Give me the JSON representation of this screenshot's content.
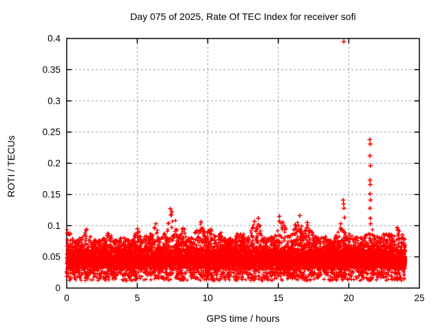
{
  "chart_data": {
    "type": "scatter",
    "title": "Day 075 of 2025, Rate Of TEC Index for receiver sofi",
    "xlabel": "GPS time / hours",
    "ylabel": "ROTI / TECUs",
    "xlim": [
      0,
      25
    ],
    "ylim": [
      0,
      0.4
    ],
    "xticks": [
      {
        "value": 0,
        "label": "0"
      },
      {
        "value": 5,
        "label": "5"
      },
      {
        "value": 10,
        "label": "10"
      },
      {
        "value": 15,
        "label": "15"
      },
      {
        "value": 20,
        "label": "20"
      },
      {
        "value": 25,
        "label": "25"
      }
    ],
    "yticks": [
      {
        "value": 0,
        "label": "0"
      },
      {
        "value": 0.05,
        "label": "0.05"
      },
      {
        "value": 0.1,
        "label": "0.1"
      },
      {
        "value": 0.15,
        "label": "0.15"
      },
      {
        "value": 0.2,
        "label": "0.2"
      },
      {
        "value": 0.25,
        "label": "0.25"
      },
      {
        "value": 0.3,
        "label": "0.3"
      },
      {
        "value": 0.35,
        "label": "0.35"
      },
      {
        "value": 0.4,
        "label": "0.4"
      }
    ],
    "grid": true,
    "legend": "none",
    "marker": "plus",
    "marker_color": "#ff0000",
    "grid_color": "#9e9e9e",
    "axis_color": "#000000",
    "background_color": "#ffffff",
    "band": {
      "comment": "dense noise band of ROTI values covering 0-24 h",
      "x_range": [
        0,
        24
      ],
      "core_range": [
        0.026,
        0.062
      ],
      "lower_fringe": 0.012,
      "envelope": [
        [
          0,
          0.095
        ],
        [
          0.3,
          0.088
        ],
        [
          0.6,
          0.075
        ],
        [
          1,
          0.082
        ],
        [
          1.4,
          0.094
        ],
        [
          1.8,
          0.08
        ],
        [
          2.2,
          0.077
        ],
        [
          2.6,
          0.082
        ],
        [
          3,
          0.09
        ],
        [
          3.4,
          0.076
        ],
        [
          3.8,
          0.08
        ],
        [
          4.2,
          0.083
        ],
        [
          4.6,
          0.075
        ],
        [
          5,
          0.094
        ],
        [
          5.4,
          0.082
        ],
        [
          5.8,
          0.085
        ],
        [
          6.3,
          0.102
        ],
        [
          6.6,
          0.082
        ],
        [
          7,
          0.09
        ],
        [
          7.4,
          0.124
        ],
        [
          7.7,
          0.114
        ],
        [
          8,
          0.086
        ],
        [
          8.3,
          0.104
        ],
        [
          8.6,
          0.082
        ],
        [
          9,
          0.086
        ],
        [
          9.5,
          0.105
        ],
        [
          9.8,
          0.09
        ],
        [
          10.2,
          0.094
        ],
        [
          10.6,
          0.082
        ],
        [
          11,
          0.09
        ],
        [
          11.4,
          0.08
        ],
        [
          11.8,
          0.086
        ],
        [
          12.2,
          0.09
        ],
        [
          12.6,
          0.086
        ],
        [
          13,
          0.092
        ],
        [
          13.3,
          0.106
        ],
        [
          13.6,
          0.11
        ],
        [
          14,
          0.086
        ],
        [
          14.4,
          0.08
        ],
        [
          14.8,
          0.086
        ],
        [
          15.1,
          0.112
        ],
        [
          15.4,
          0.104
        ],
        [
          15.8,
          0.082
        ],
        [
          16.2,
          0.1
        ],
        [
          16.5,
          0.113
        ],
        [
          16.8,
          0.09
        ],
        [
          17.1,
          0.104
        ],
        [
          17.5,
          0.086
        ],
        [
          17.9,
          0.08
        ],
        [
          18.3,
          0.084
        ],
        [
          18.7,
          0.076
        ],
        [
          19,
          0.08
        ],
        [
          19.4,
          0.102
        ],
        [
          19.7,
          0.09
        ],
        [
          20,
          0.088
        ],
        [
          20.4,
          0.084
        ],
        [
          20.8,
          0.08
        ],
        [
          21.2,
          0.086
        ],
        [
          21.5,
          0.1
        ],
        [
          21.8,
          0.09
        ],
        [
          22.2,
          0.085
        ],
        [
          22.6,
          0.09
        ],
        [
          23,
          0.086
        ],
        [
          23.4,
          0.096
        ],
        [
          23.7,
          0.09
        ],
        [
          24,
          0.086
        ]
      ]
    },
    "outliers": [
      [
        19.65,
        0.395
      ],
      [
        19.6,
        0.141
      ],
      [
        19.63,
        0.135
      ],
      [
        19.66,
        0.128
      ],
      [
        19.7,
        0.113
      ],
      [
        21.48,
        0.238
      ],
      [
        21.52,
        0.231
      ],
      [
        21.5,
        0.212
      ],
      [
        21.53,
        0.196
      ],
      [
        21.5,
        0.173
      ],
      [
        21.52,
        0.166
      ],
      [
        21.5,
        0.151
      ],
      [
        21.53,
        0.141
      ],
      [
        21.5,
        0.128
      ],
      [
        21.52,
        0.112
      ],
      [
        21.55,
        0.103
      ],
      [
        7.35,
        0.127
      ],
      [
        7.45,
        0.122
      ],
      [
        7.42,
        0.117
      ],
      [
        15.08,
        0.115
      ],
      [
        16.52,
        0.116
      ],
      [
        13.58,
        0.112
      ],
      [
        13.32,
        0.107
      ],
      [
        9.52,
        0.106
      ],
      [
        17.05,
        0.105
      ],
      [
        6.32,
        0.103
      ],
      [
        16.2,
        0.101
      ],
      [
        19.42,
        0.103
      ],
      [
        23.42,
        0.097
      ],
      [
        5.02,
        0.095
      ],
      [
        1.42,
        0.094
      ],
      [
        10.22,
        0.094
      ]
    ]
  }
}
